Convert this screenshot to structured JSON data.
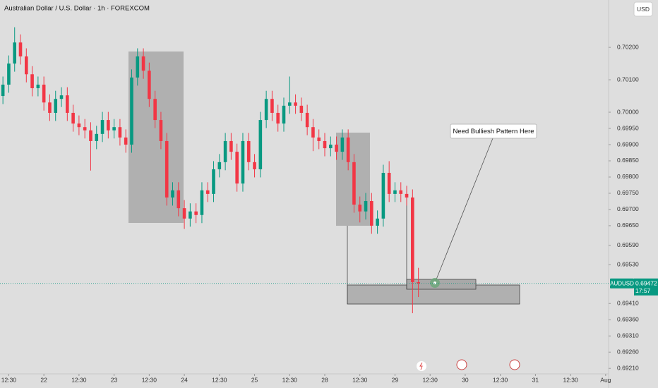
{
  "chart_data": {
    "type": "candlestick",
    "title": "Australian Dollar / U.S. Dollar · 1h · FOREXCOM",
    "currency": "USD",
    "symbol": "AUDUSD",
    "last_price": {
      "value": 0.69472,
      "label": "0.69472"
    },
    "countdown": "17:57",
    "annotation": "Need Bulliesh Pattern Here",
    "up_color": "#089981",
    "down_color": "#f23645",
    "x": [
      0.5,
      1.5,
      2.5,
      3.5,
      4.5,
      5.5,
      6.5,
      7.5,
      8.5,
      9.5,
      10.5,
      11.5,
      12.5,
      13.5,
      14.5,
      15.5,
      16.5,
      17.5,
      18.5,
      19.5,
      20.5,
      21.5,
      22.5,
      23.5,
      24.5,
      25.5,
      26.5,
      27.5,
      28.5,
      29.5,
      30.5,
      31.5,
      32.5,
      33.5,
      34.5,
      35.5,
      36.5,
      37.5,
      38.5,
      39.5,
      40.5,
      41.5,
      42.5,
      43.5,
      44.5,
      45.5,
      46.5,
      47.5,
      48.5,
      49.5,
      50.5,
      51.5,
      52.5,
      53.5,
      54.5,
      55.5,
      56.5,
      57.5,
      58.5,
      59.5,
      60.5,
      61.5,
      62.5,
      63.5,
      64.5,
      65.5,
      66.5,
      67.5,
      68.5,
      69.5,
      70.5,
      71.5
    ],
    "open": [
      0.7005,
      0.70085,
      0.7015,
      0.70215,
      0.70172,
      0.70117,
      0.70074,
      0.70085,
      0.7003,
      0.69998,
      0.70041,
      0.70052,
      0.69998,
      0.69965,
      0.69954,
      0.69944,
      0.69911,
      0.69933,
      0.69976,
      0.69944,
      0.69954,
      0.69922,
      0.699,
      0.70107,
      0.70172,
      0.70128,
      0.70041,
      0.69976,
      0.69911,
      0.69737,
      0.69759,
      0.69704,
      0.69672,
      0.69694,
      0.69683,
      0.69759,
      0.69748,
      0.69824,
      0.69846,
      0.69911,
      0.69878,
      0.6978,
      0.69911,
      0.69846,
      0.69824,
      0.69976,
      0.70041,
      0.69998,
      0.69965,
      0.7002,
      0.7003,
      0.7002,
      0.69998,
      0.69954,
      0.69922,
      0.69911,
      0.69889,
      0.699,
      0.69878,
      0.69922,
      0.69846,
      0.69715,
      0.69694,
      0.69726,
      0.6965,
      0.69672,
      0.69813,
      0.69748,
      0.69759,
      0.69748,
      0.69737,
      0.69476
    ],
    "high": [
      0.7011,
      0.70175,
      0.70262,
      0.7024,
      0.70197,
      0.70142,
      0.7011,
      0.7011,
      0.70055,
      0.70066,
      0.70077,
      0.70077,
      0.70023,
      0.6999,
      0.69979,
      0.69969,
      0.69958,
      0.70001,
      0.70001,
      0.69979,
      0.69979,
      0.69947,
      0.70132,
      0.70197,
      0.70197,
      0.70153,
      0.70066,
      0.70001,
      0.69936,
      0.69784,
      0.69784,
      0.69729,
      0.69719,
      0.69719,
      0.69784,
      0.69784,
      0.69849,
      0.69871,
      0.69936,
      0.69936,
      0.69903,
      0.69936,
      0.69936,
      0.69871,
      0.70001,
      0.70066,
      0.70066,
      0.70023,
      0.70045,
      0.7011,
      0.70055,
      0.70045,
      0.70023,
      0.69979,
      0.69947,
      0.69936,
      0.69925,
      0.69925,
      0.69947,
      0.69947,
      0.69871,
      0.6974,
      0.69751,
      0.69751,
      0.69697,
      0.69838,
      0.69849,
      0.69784,
      0.69784,
      0.69773,
      0.69762,
      0.6952
    ],
    "low": [
      0.70025,
      0.7006,
      0.70125,
      0.70147,
      0.70092,
      0.70049,
      0.70049,
      0.70005,
      0.69973,
      0.69973,
      0.70016,
      0.69973,
      0.6994,
      0.69929,
      0.69919,
      0.6982,
      0.69886,
      0.69908,
      0.69919,
      0.69919,
      0.69897,
      0.69875,
      0.69875,
      0.70082,
      0.70103,
      0.70016,
      0.69951,
      0.69886,
      0.69712,
      0.69712,
      0.69679,
      0.6964,
      0.69647,
      0.69658,
      0.69658,
      0.69723,
      0.69723,
      0.69799,
      0.69821,
      0.69853,
      0.69755,
      0.69755,
      0.69821,
      0.69799,
      0.69799,
      0.69951,
      0.69973,
      0.6994,
      0.6994,
      0.69995,
      0.69995,
      0.69973,
      0.69929,
      0.6988,
      0.69886,
      0.69864,
      0.69864,
      0.69853,
      0.69853,
      0.69821,
      0.6969,
      0.6966,
      0.69669,
      0.69625,
      0.69625,
      0.69647,
      0.69723,
      0.69723,
      0.69723,
      0.69712,
      0.6938,
      0.6943
    ],
    "close": [
      0.70085,
      0.7015,
      0.70215,
      0.70172,
      0.70117,
      0.70074,
      0.70085,
      0.7003,
      0.69998,
      0.70041,
      0.70052,
      0.69998,
      0.69965,
      0.69954,
      0.69944,
      0.69911,
      0.69933,
      0.69976,
      0.69944,
      0.69954,
      0.69922,
      0.699,
      0.70107,
      0.70172,
      0.70128,
      0.70041,
      0.69976,
      0.69911,
      0.69737,
      0.69759,
      0.69704,
      0.69672,
      0.69694,
      0.69683,
      0.69759,
      0.69748,
      0.69824,
      0.69846,
      0.69911,
      0.69878,
      0.6978,
      0.69911,
      0.69846,
      0.69824,
      0.69976,
      0.70041,
      0.69998,
      0.69965,
      0.7002,
      0.7003,
      0.7002,
      0.69998,
      0.69954,
      0.69922,
      0.69911,
      0.69889,
      0.699,
      0.69878,
      0.69922,
      0.69846,
      0.69715,
      0.69694,
      0.69726,
      0.6965,
      0.69672,
      0.69813,
      0.69748,
      0.69759,
      0.69748,
      0.69737,
      0.69476,
      0.69472
    ],
    "xlim": [
      0,
      104
    ],
    "xticks": [
      {
        "value": 1.5,
        "label": "12:30"
      },
      {
        "value": 7.5,
        "label": "22"
      },
      {
        "value": 13.5,
        "label": "12:30"
      },
      {
        "value": 19.5,
        "label": "23"
      },
      {
        "value": 25.5,
        "label": "12:30"
      },
      {
        "value": 31.5,
        "label": "24"
      },
      {
        "value": 37.5,
        "label": "12:30"
      },
      {
        "value": 43.5,
        "label": "25"
      },
      {
        "value": 49.5,
        "label": "12:30"
      },
      {
        "value": 55.5,
        "label": "28"
      },
      {
        "value": 61.5,
        "label": "12:30"
      },
      {
        "value": 67.5,
        "label": "29"
      },
      {
        "value": 73.5,
        "label": "12:30"
      },
      {
        "value": 79.5,
        "label": "30"
      },
      {
        "value": 85.5,
        "label": "12:30"
      },
      {
        "value": 91.5,
        "label": "31"
      },
      {
        "value": 97.5,
        "label": "12:30"
      },
      {
        "value": 103.5,
        "label": "Aug"
      }
    ],
    "ylim": [
      0.69193,
      0.70346
    ],
    "yticks": [
      {
        "value": 0.702,
        "label": "0.70200"
      },
      {
        "value": 0.701,
        "label": "0.70100"
      },
      {
        "value": 0.7,
        "label": "0.70000"
      },
      {
        "value": 0.6995,
        "label": "0.69950"
      },
      {
        "value": 0.699,
        "label": "0.69900"
      },
      {
        "value": 0.6985,
        "label": "0.69850"
      },
      {
        "value": 0.698,
        "label": "0.69800"
      },
      {
        "value": 0.6975,
        "label": "0.69750"
      },
      {
        "value": 0.697,
        "label": "0.69700"
      },
      {
        "value": 0.6965,
        "label": "0.69650"
      },
      {
        "value": 0.6959,
        "label": "0.69590"
      },
      {
        "value": 0.6953,
        "label": "0.69530"
      },
      {
        "value": 0.6941,
        "label": "0.69410"
      },
      {
        "value": 0.6936,
        "label": "0.69360"
      },
      {
        "value": 0.6931,
        "label": "0.69310"
      },
      {
        "value": 0.6926,
        "label": "0.69260"
      },
      {
        "value": 0.6921,
        "label": "0.69210"
      }
    ]
  }
}
